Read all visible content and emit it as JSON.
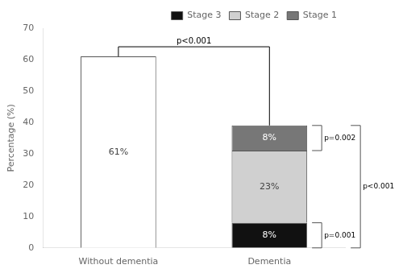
{
  "chart_data": {
    "type": "bar",
    "stacked": true,
    "categories": [
      "Without dementia",
      "Dementia"
    ],
    "series": [
      {
        "color": "#ffffff",
        "values": [
          61,
          null
        ],
        "value_labels": [
          "61%",
          null
        ]
      },
      {
        "name": "Stage 3",
        "color": "#111111",
        "values": [
          null,
          8
        ],
        "value_labels": [
          null,
          "8%"
        ]
      },
      {
        "name": "Stage 2",
        "color": "#d0d0d0",
        "values": [
          null,
          23
        ],
        "value_labels": [
          null,
          "23%"
        ]
      },
      {
        "name": "Stage 1",
        "color": "#777777",
        "values": [
          null,
          8
        ],
        "value_labels": [
          null,
          "8%"
        ]
      }
    ],
    "data_labels": true,
    "ylabel": "Percentage (%)",
    "ylim": [
      0,
      70
    ],
    "yticks": [
      0,
      10,
      20,
      30,
      40,
      50,
      60,
      70
    ],
    "grid": false,
    "legend": "upper right",
    "annotations": [
      {
        "text": "p<0.001",
        "categories": [
          "Without dementia",
          "Dementia"
        ]
      },
      {
        "text": "p=0.002",
        "series": [
          "Stage 1"
        ]
      },
      {
        "text": "p=0.001",
        "series": [
          "Stage 3"
        ]
      },
      {
        "text": "p<0.001",
        "series": [
          "Stage 3",
          "Stage 2",
          "Stage 1"
        ]
      }
    ]
  }
}
